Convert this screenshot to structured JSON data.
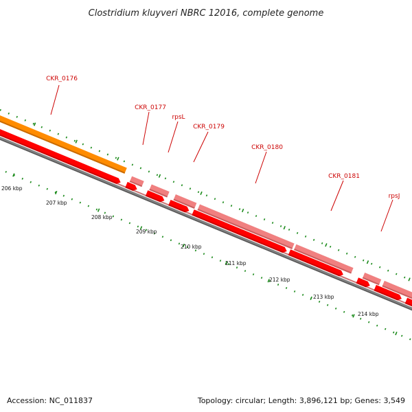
{
  "title": "Clostridium kluyveri NBRC 12016, complete genome",
  "footer": {
    "accession": "Accession: NC_011837",
    "summary": "Topology: circular; Length: 3,896,121 bp; Genes: 3,549"
  },
  "genes": [
    {
      "label": "CKR_0176"
    },
    {
      "label": "CKR_0177"
    },
    {
      "label": "rpsL"
    },
    {
      "label": "CKR_0179"
    },
    {
      "label": "CKR_0180"
    },
    {
      "label": "CKR_0181"
    },
    {
      "label": "rpsJ"
    }
  ],
  "scale_labels": [
    "206 kbp",
    "207 kbp",
    "208 kbp",
    "209 kbp",
    "210 kbp",
    "211 kbp",
    "212 kbp",
    "213 kbp",
    "214 kbp"
  ],
  "colors": {
    "orange": "#ff8c00",
    "cds": "#ff0000",
    "gene_pink": "#f08080",
    "backbone": "#808080",
    "tick": "#1a8a1a",
    "label": "#cc0000"
  }
}
